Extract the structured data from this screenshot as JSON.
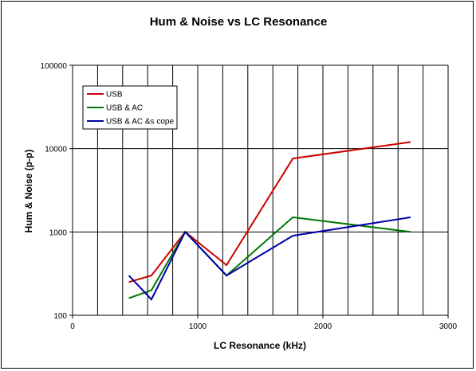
{
  "chart_data": {
    "type": "line",
    "title": "Hum & Noise vs LC Resonance",
    "xlabel": "LC Resonance (kHz)",
    "ylabel": "Hum & Noise (p-p)",
    "xlim": [
      0,
      3000
    ],
    "ylim": [
      100,
      100000
    ],
    "yscale": "log",
    "x_ticks": [
      0,
      1000,
      2000,
      3000
    ],
    "x_tick_labels": [
      "0",
      "1000",
      "2000",
      "3000"
    ],
    "y_ticks": [
      100,
      1000,
      10000,
      100000
    ],
    "y_tick_labels": [
      "100",
      "1000",
      "10000",
      "100000"
    ],
    "vertical_gridlines_x": [
      200,
      400,
      600,
      800,
      1000,
      1200,
      1400,
      1600,
      1800,
      2000,
      2200,
      2400,
      2600,
      2800,
      3000
    ],
    "horizontal_gridlines": true,
    "legend_position": "top-left",
    "series": [
      {
        "name": "USB",
        "color": "#cc0000",
        "x": [
          450,
          630,
          900,
          1230,
          1760,
          2700
        ],
        "y": [
          250,
          300,
          1000,
          400,
          7600,
          12000
        ]
      },
      {
        "name": "USB & AC",
        "color": "#007700",
        "x": [
          450,
          630,
          900,
          1230,
          1760,
          2700
        ],
        "y": [
          160,
          200,
          1000,
          300,
          1500,
          1000
        ]
      },
      {
        "name": "USB & AC &s cope",
        "color": "#0000aa",
        "x": [
          450,
          630,
          900,
          1230,
          1760,
          2700
        ],
        "y": [
          300,
          155,
          1000,
          300,
          900,
          1500
        ]
      }
    ]
  }
}
